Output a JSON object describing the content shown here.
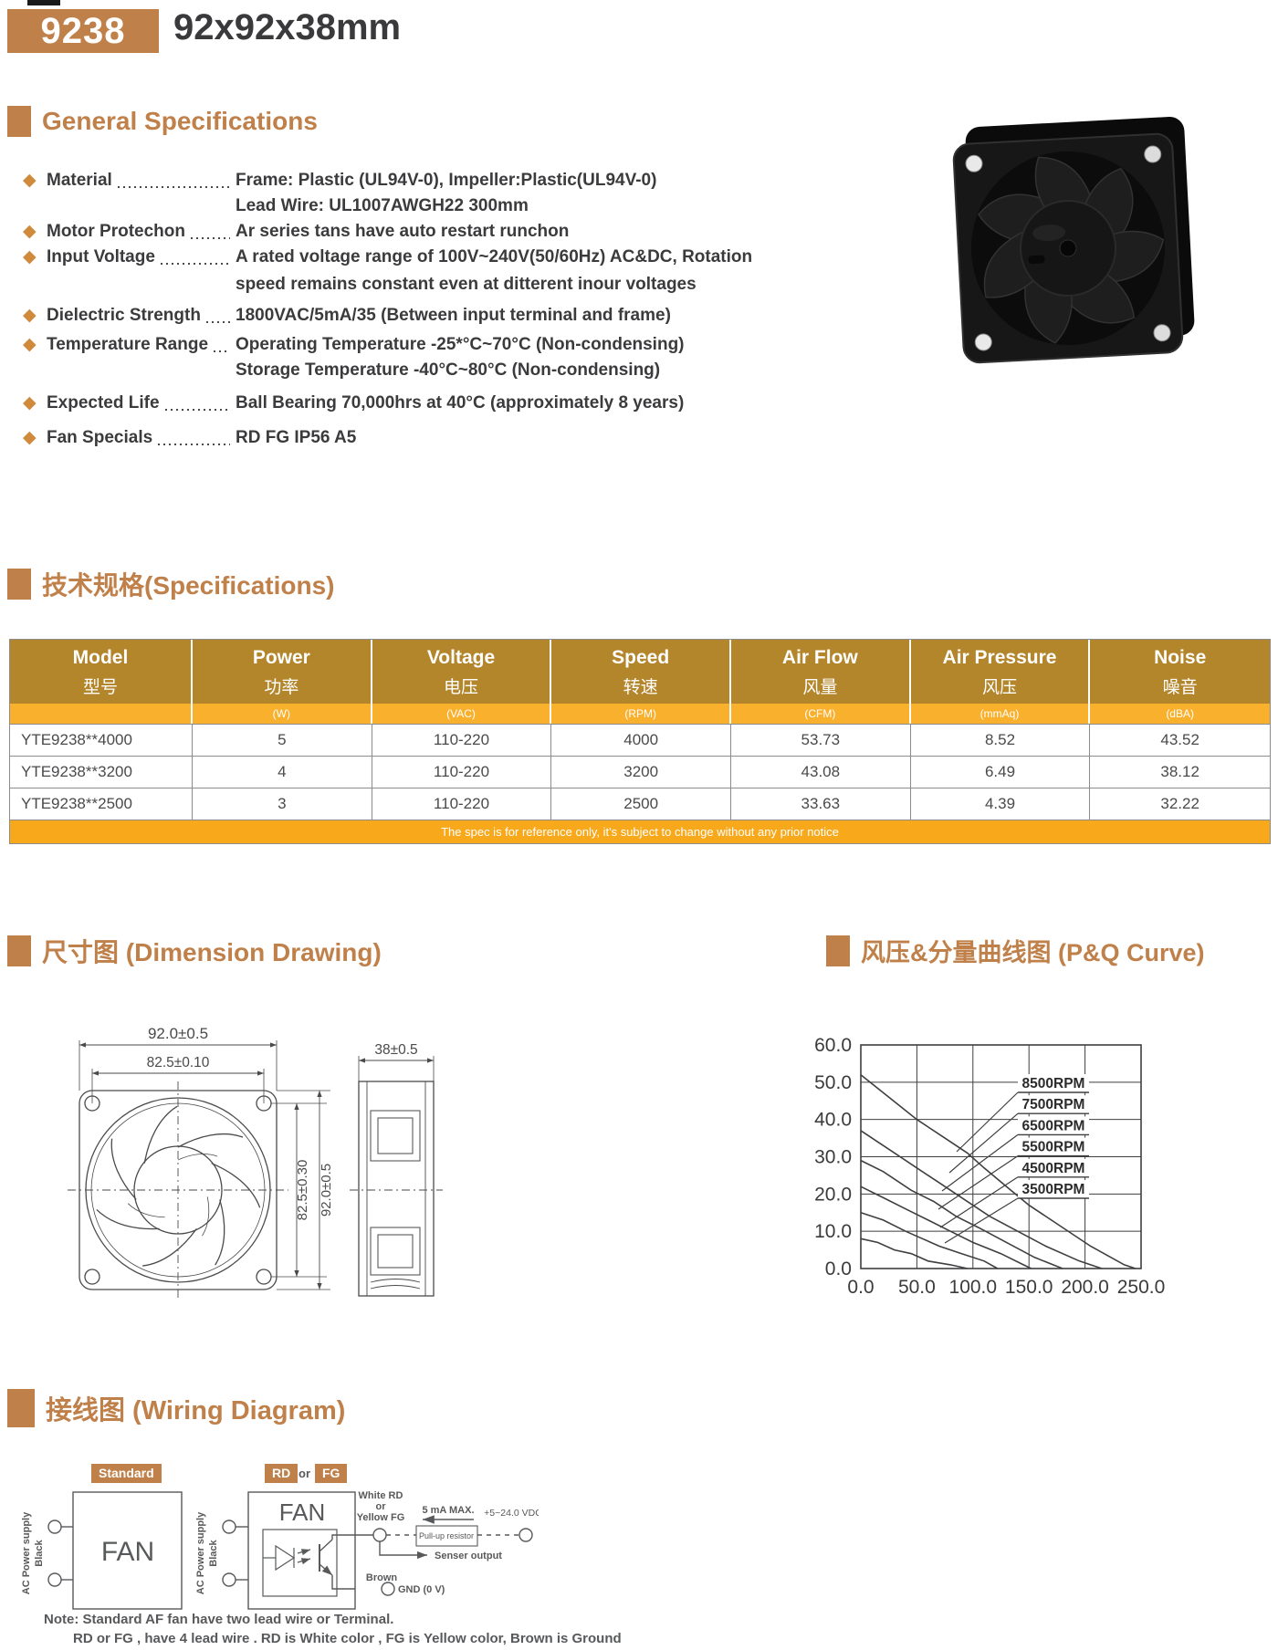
{
  "header": {
    "model_badge": "9238",
    "size_title": "92x92x38mm"
  },
  "sections": {
    "general": {
      "title": "General Specifications"
    },
    "specs": {
      "title": "技术规格(Specifications)"
    },
    "dimension": {
      "title": "尺寸图 (Dimension Drawing)"
    },
    "pq": {
      "title": "风压&分量曲线图 (P&Q Curve)"
    },
    "wiring": {
      "title": "接线图 (Wiring Diagram)"
    }
  },
  "general_specs": {
    "items": [
      {
        "label": "Material",
        "lines": [
          "Frame: Plastic (UL94V-0), Impeller:Plastic(UL94V-0)",
          "Lead Wire: UL1007AWGH22 300mm"
        ]
      },
      {
        "label": "Motor Protechon",
        "lines": [
          "Ar series tans have auto restart runchon"
        ]
      },
      {
        "label": "Input Voltage",
        "lines": [
          "A rated voltage range of 100V~240V(50/60Hz) AC&DC, Rotation",
          "speed remains constant even at ditterent inour voltages"
        ]
      },
      {
        "label": "Dielectric Strength",
        "lines": [
          "1800VAC/5mA/35 (Between input terminal and frame)"
        ]
      },
      {
        "label": "Temperature Range",
        "lines": [
          "Operating Temperature -25*°C~70°C (Non-condensing)",
          "Storage Temperature -40°C~80°C (Non-condensing)"
        ]
      },
      {
        "label": "Expected Life",
        "lines": [
          "Ball Bearing 70,000hrs at 40°C (approximately 8 years)"
        ]
      },
      {
        "label": "Fan Specials",
        "lines": [
          "RD FG IP56 A5"
        ]
      }
    ]
  },
  "spec_table": {
    "columns": [
      {
        "en": "Model",
        "zh": "型号",
        "unit": ""
      },
      {
        "en": "Power",
        "zh": "功率",
        "unit": "(W)"
      },
      {
        "en": "Voltage",
        "zh": "电压",
        "unit": "(VAC)"
      },
      {
        "en": "Speed",
        "zh": "转速",
        "unit": "(RPM)"
      },
      {
        "en": "Air Flow",
        "zh": "风量",
        "unit": "(CFM)"
      },
      {
        "en": "Air Pressure",
        "zh": "风压",
        "unit": "(mmAq)"
      },
      {
        "en": "Noise",
        "zh": "噪音",
        "unit": "(dBA)"
      }
    ],
    "rows": [
      {
        "cells": [
          "YTE9238**4000",
          "5",
          "110-220",
          "4000",
          "53.73",
          "8.52",
          "43.52"
        ]
      },
      {
        "cells": [
          "YTE9238**3200",
          "4",
          "110-220",
          "3200",
          "43.08",
          "6.49",
          "38.12"
        ]
      },
      {
        "cells": [
          "YTE9238**2500",
          "3",
          "110-220",
          "2500",
          "33.63",
          "4.39",
          "32.22"
        ]
      }
    ],
    "footnote": "The spec is for reference only, it's subject to change without any prior notice"
  },
  "dimension_drawing": {
    "front_width": "92.0±0.5",
    "hole_pitch": "82.5±0.10",
    "hole_pitch_v": "82.5±0.30",
    "front_height": "92.0±0.5",
    "side_depth": "38±0.5"
  },
  "chart_data": {
    "type": "line",
    "title": "P&Q Curve",
    "xlim": [
      0,
      250
    ],
    "ylim": [
      0,
      60
    ],
    "x_ticks": [
      "0.0",
      "50.0",
      "100.0",
      "150.0",
      "200.0",
      "250.0"
    ],
    "y_ticks": [
      "60.0",
      "50.0",
      "40.0",
      "30.0",
      "20.0",
      "10.0",
      "0.0"
    ],
    "grid": true,
    "legend": "boxed labels inside plot, right side",
    "series": [
      {
        "name": "8500RPM",
        "points": [
          [
            0,
            52
          ],
          [
            25,
            46
          ],
          [
            50,
            40
          ],
          [
            75,
            35
          ],
          [
            95,
            31
          ],
          [
            110,
            27
          ],
          [
            130,
            22
          ],
          [
            150,
            17
          ],
          [
            175,
            12
          ],
          [
            205,
            6
          ],
          [
            235,
            1
          ],
          [
            245,
            0
          ]
        ]
      },
      {
        "name": "7500RPM",
        "points": [
          [
            0,
            37
          ],
          [
            25,
            32
          ],
          [
            50,
            27
          ],
          [
            70,
            23
          ],
          [
            90,
            19
          ],
          [
            115,
            14
          ],
          [
            140,
            10
          ],
          [
            165,
            6
          ],
          [
            195,
            2
          ],
          [
            215,
            0
          ]
        ]
      },
      {
        "name": "6500RPM",
        "points": [
          [
            0,
            29
          ],
          [
            20,
            26
          ],
          [
            45,
            21
          ],
          [
            65,
            18
          ],
          [
            85,
            14
          ],
          [
            105,
            11
          ],
          [
            130,
            7
          ],
          [
            155,
            3
          ],
          [
            180,
            0
          ]
        ]
      },
      {
        "name": "5500RPM",
        "points": [
          [
            0,
            22
          ],
          [
            20,
            19
          ],
          [
            40,
            16
          ],
          [
            60,
            13
          ],
          [
            80,
            10
          ],
          [
            100,
            7
          ],
          [
            125,
            4
          ],
          [
            145,
            1
          ],
          [
            152,
            0
          ]
        ]
      },
      {
        "name": "4500RPM",
        "points": [
          [
            0,
            15
          ],
          [
            20,
            13
          ],
          [
            40,
            10
          ],
          [
            55,
            8
          ],
          [
            70,
            6
          ],
          [
            90,
            4
          ],
          [
            110,
            2
          ],
          [
            122,
            0
          ]
        ]
      },
      {
        "name": "3500RPM",
        "points": [
          [
            0,
            8
          ],
          [
            15,
            7
          ],
          [
            30,
            5
          ],
          [
            45,
            4
          ],
          [
            60,
            2
          ],
          [
            80,
            1
          ],
          [
            95,
            0
          ]
        ]
      }
    ]
  },
  "wiring": {
    "standard_badge": "Standard",
    "rd_badge": "RD",
    "or_label": "or",
    "fg_badge": "FG",
    "fan_label": "FAN",
    "ac_supply": "AC Power supply",
    "black": "Black",
    "white_rd": "White  RD",
    "or_small": "or",
    "yellow_fg": "Yellow FG",
    "max_current": "5 mA MAX.",
    "vdc": "+5~24.0 VDC",
    "pullup": "Pull-up resistor",
    "sensor_out": "Senser output",
    "brown": "Brown",
    "gnd": "GND (0 V)",
    "note1": "Note: Standard AF fan have two lead wire or Terminal.",
    "note2": "RD or FG , have 4 lead wire . RD is White color , FG is Yellow color, Brown is Ground"
  },
  "colors": {
    "accent": "#c0804a",
    "table_header": "#b4862c",
    "table_units": "#f9b02c",
    "table_footer": "#f7a81b",
    "text": "#3b3b3d",
    "line": "#4a4a4c"
  }
}
